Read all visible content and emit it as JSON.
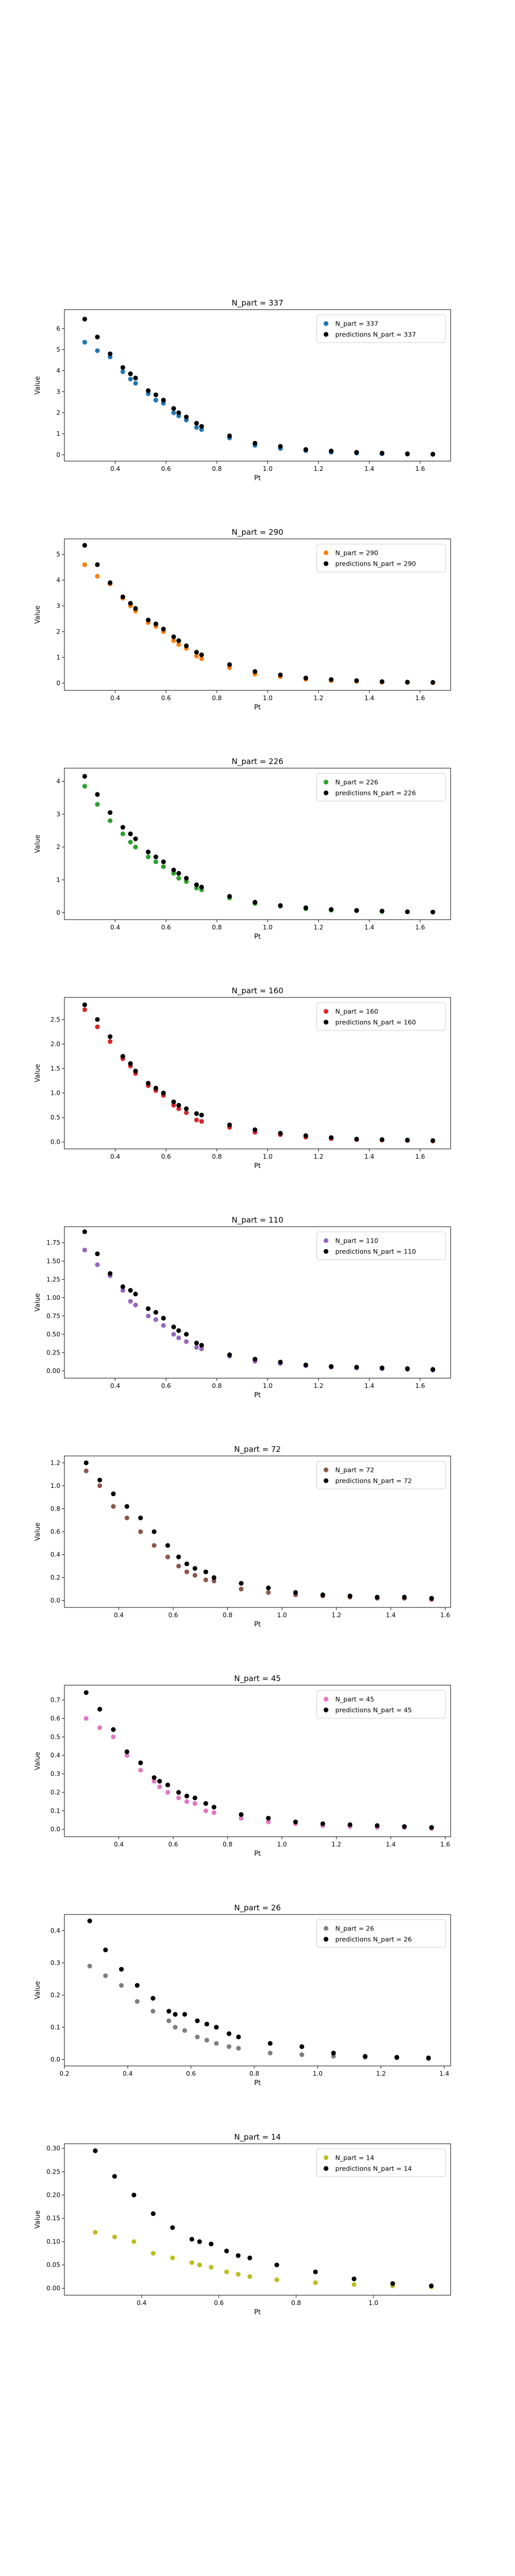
{
  "chart_data": [
    {
      "type": "scatter",
      "title": "N_part = 337",
      "xlabel": "Pt",
      "ylabel": "Value",
      "xlim": [
        0.2,
        1.72
      ],
      "ylim": [
        -0.3,
        6.9
      ],
      "xticks": [
        0.4,
        0.6,
        0.8,
        1.0,
        1.2,
        1.4,
        1.6
      ],
      "xtick_labels": [
        "0.4",
        "0.6",
        "0.8",
        "1.0",
        "1.2",
        "1.4",
        "1.6"
      ],
      "yticks": [
        0,
        1,
        2,
        3,
        4,
        5,
        6
      ],
      "ytick_labels": [
        "0",
        "1",
        "2",
        "3",
        "4",
        "5",
        "6"
      ],
      "grid": false,
      "legend_position": "upper right",
      "x": [
        0.28,
        0.33,
        0.38,
        0.43,
        0.46,
        0.48,
        0.53,
        0.56,
        0.59,
        0.63,
        0.65,
        0.68,
        0.72,
        0.74,
        0.85,
        0.95,
        1.05,
        1.15,
        1.25,
        1.35,
        1.45,
        1.55,
        1.65
      ],
      "series": [
        {
          "name": "N_part = 337",
          "color": "#1f77b4",
          "values": [
            5.35,
            4.95,
            4.65,
            3.95,
            3.6,
            3.4,
            2.9,
            2.6,
            2.45,
            2.0,
            1.85,
            1.65,
            1.3,
            1.2,
            0.8,
            0.45,
            0.3,
            0.2,
            0.12,
            0.08,
            0.05,
            0.03,
            0.02
          ]
        },
        {
          "name": "predictions N_part = 337",
          "color": "#000000",
          "values": [
            6.45,
            5.6,
            4.8,
            4.15,
            3.85,
            3.65,
            3.05,
            2.85,
            2.6,
            2.2,
            2.0,
            1.8,
            1.5,
            1.35,
            0.9,
            0.55,
            0.4,
            0.25,
            0.18,
            0.12,
            0.08,
            0.05,
            0.03
          ]
        }
      ]
    },
    {
      "type": "scatter",
      "title": "N_part = 290",
      "xlabel": "Pt",
      "ylabel": "Value",
      "xlim": [
        0.2,
        1.72
      ],
      "ylim": [
        -0.28,
        5.6
      ],
      "xticks": [
        0.4,
        0.6,
        0.8,
        1.0,
        1.2,
        1.4,
        1.6
      ],
      "xtick_labels": [
        "0.4",
        "0.6",
        "0.8",
        "1.0",
        "1.2",
        "1.4",
        "1.6"
      ],
      "yticks": [
        0,
        1,
        2,
        3,
        4,
        5
      ],
      "ytick_labels": [
        "0",
        "1",
        "2",
        "3",
        "4",
        "5"
      ],
      "grid": false,
      "legend_position": "upper right",
      "x": [
        0.28,
        0.33,
        0.38,
        0.43,
        0.46,
        0.48,
        0.53,
        0.56,
        0.59,
        0.63,
        0.65,
        0.68,
        0.72,
        0.74,
        0.85,
        0.95,
        1.05,
        1.15,
        1.25,
        1.35,
        1.45,
        1.55,
        1.65
      ],
      "series": [
        {
          "name": "N_part = 290",
          "color": "#ff7f0e",
          "values": [
            4.6,
            4.15,
            3.85,
            3.3,
            3.0,
            2.8,
            2.35,
            2.2,
            2.0,
            1.65,
            1.5,
            1.35,
            1.05,
            0.95,
            0.6,
            0.35,
            0.25,
            0.15,
            0.1,
            0.07,
            0.04,
            0.03,
            0.02
          ]
        },
        {
          "name": "predictions N_part = 290",
          "color": "#000000",
          "values": [
            5.35,
            4.6,
            3.9,
            3.35,
            3.1,
            2.9,
            2.45,
            2.3,
            2.1,
            1.8,
            1.65,
            1.45,
            1.2,
            1.1,
            0.72,
            0.45,
            0.32,
            0.2,
            0.14,
            0.1,
            0.06,
            0.04,
            0.03
          ]
        }
      ]
    },
    {
      "type": "scatter",
      "title": "N_part = 226",
      "xlabel": "Pt",
      "ylabel": "Value",
      "xlim": [
        0.2,
        1.72
      ],
      "ylim": [
        -0.21,
        4.4
      ],
      "xticks": [
        0.4,
        0.6,
        0.8,
        1.0,
        1.2,
        1.4,
        1.6
      ],
      "xtick_labels": [
        "0.4",
        "0.6",
        "0.8",
        "1.0",
        "1.2",
        "1.4",
        "1.6"
      ],
      "yticks": [
        0,
        1,
        2,
        3,
        4
      ],
      "ytick_labels": [
        "0",
        "1",
        "2",
        "3",
        "4"
      ],
      "grid": false,
      "legend_position": "upper right",
      "x": [
        0.28,
        0.33,
        0.38,
        0.43,
        0.46,
        0.48,
        0.53,
        0.56,
        0.59,
        0.63,
        0.65,
        0.68,
        0.72,
        0.74,
        0.85,
        0.95,
        1.05,
        1.15,
        1.25,
        1.35,
        1.45,
        1.55,
        1.65
      ],
      "series": [
        {
          "name": "N_part = 226",
          "color": "#2ca02c",
          "values": [
            3.85,
            3.3,
            2.8,
            2.4,
            2.15,
            2.0,
            1.7,
            1.55,
            1.4,
            1.2,
            1.05,
            0.95,
            0.75,
            0.7,
            0.45,
            0.28,
            0.2,
            0.12,
            0.08,
            0.06,
            0.04,
            0.03,
            0.02
          ]
        },
        {
          "name": "predictions N_part = 226",
          "color": "#000000",
          "values": [
            4.15,
            3.6,
            3.05,
            2.6,
            2.4,
            2.25,
            1.85,
            1.7,
            1.55,
            1.3,
            1.2,
            1.05,
            0.85,
            0.78,
            0.5,
            0.32,
            0.22,
            0.15,
            0.1,
            0.07,
            0.05,
            0.03,
            0.02
          ]
        }
      ]
    },
    {
      "type": "scatter",
      "title": "N_part = 160",
      "xlabel": "Pt",
      "ylabel": "Value",
      "xlim": [
        0.2,
        1.72
      ],
      "ylim": [
        -0.14,
        2.95
      ],
      "xticks": [
        0.4,
        0.6,
        0.8,
        1.0,
        1.2,
        1.4,
        1.6
      ],
      "xtick_labels": [
        "0.4",
        "0.6",
        "0.8",
        "1.0",
        "1.2",
        "1.4",
        "1.6"
      ],
      "yticks": [
        0,
        0.5,
        1.0,
        1.5,
        2.0,
        2.5
      ],
      "ytick_labels": [
        "0.0",
        "0.5",
        "1.0",
        "1.5",
        "2.0",
        "2.5"
      ],
      "grid": false,
      "legend_position": "upper right",
      "x": [
        0.28,
        0.33,
        0.38,
        0.43,
        0.46,
        0.48,
        0.53,
        0.56,
        0.59,
        0.63,
        0.65,
        0.68,
        0.72,
        0.74,
        0.85,
        0.95,
        1.05,
        1.15,
        1.25,
        1.35,
        1.45,
        1.55,
        1.65
      ],
      "series": [
        {
          "name": "N_part = 160",
          "color": "#d62728",
          "values": [
            2.7,
            2.35,
            2.05,
            1.7,
            1.55,
            1.4,
            1.15,
            1.05,
            0.95,
            0.75,
            0.68,
            0.6,
            0.45,
            0.42,
            0.3,
            0.2,
            0.15,
            0.1,
            0.07,
            0.05,
            0.04,
            0.03,
            0.02
          ]
        },
        {
          "name": "predictions N_part = 160",
          "color": "#000000",
          "values": [
            2.8,
            2.5,
            2.15,
            1.75,
            1.6,
            1.45,
            1.2,
            1.1,
            1.0,
            0.82,
            0.75,
            0.68,
            0.58,
            0.55,
            0.35,
            0.25,
            0.18,
            0.13,
            0.09,
            0.06,
            0.05,
            0.04,
            0.03
          ]
        }
      ]
    },
    {
      "type": "scatter",
      "title": "N_part = 110",
      "xlabel": "Pt",
      "ylabel": "Value",
      "xlim": [
        0.2,
        1.72
      ],
      "ylim": [
        -0.1,
        1.97
      ],
      "xticks": [
        0.4,
        0.6,
        0.8,
        1.0,
        1.2,
        1.4,
        1.6
      ],
      "xtick_labels": [
        "0.4",
        "0.6",
        "0.8",
        "1.0",
        "1.2",
        "1.4",
        "1.6"
      ],
      "yticks": [
        0,
        0.25,
        0.5,
        0.75,
        1.0,
        1.25,
        1.5,
        1.75
      ],
      "ytick_labels": [
        "0.00",
        "0.25",
        "0.50",
        "0.75",
        "1.00",
        "1.25",
        "1.50",
        "1.75"
      ],
      "grid": false,
      "legend_position": "upper right",
      "x": [
        0.28,
        0.33,
        0.38,
        0.43,
        0.46,
        0.48,
        0.53,
        0.56,
        0.59,
        0.63,
        0.65,
        0.68,
        0.72,
        0.74,
        0.85,
        0.95,
        1.05,
        1.15,
        1.25,
        1.35,
        1.45,
        1.55,
        1.65
      ],
      "series": [
        {
          "name": "N_part = 110",
          "color": "#9467bd",
          "values": [
            1.65,
            1.45,
            1.3,
            1.1,
            0.95,
            0.9,
            0.75,
            0.7,
            0.62,
            0.5,
            0.45,
            0.4,
            0.32,
            0.3,
            0.2,
            0.13,
            0.1,
            0.07,
            0.05,
            0.04,
            0.03,
            0.02,
            0.01
          ]
        },
        {
          "name": "predictions N_part = 110",
          "color": "#000000",
          "values": [
            1.9,
            1.6,
            1.33,
            1.15,
            1.1,
            1.05,
            0.85,
            0.8,
            0.72,
            0.6,
            0.55,
            0.5,
            0.38,
            0.35,
            0.22,
            0.16,
            0.12,
            0.08,
            0.06,
            0.05,
            0.04,
            0.03,
            0.02
          ]
        }
      ]
    },
    {
      "type": "scatter",
      "title": "N_part = 72",
      "xlabel": "Pt",
      "ylabel": "Value",
      "xlim": [
        0.2,
        1.62
      ],
      "ylim": [
        -0.06,
        1.26
      ],
      "xticks": [
        0.4,
        0.6,
        0.8,
        1.0,
        1.2,
        1.4,
        1.6
      ],
      "xtick_labels": [
        "0.4",
        "0.6",
        "0.8",
        "1.0",
        "1.2",
        "1.4",
        "1.6"
      ],
      "yticks": [
        0,
        0.2,
        0.4,
        0.6,
        0.8,
        1.0,
        1.2
      ],
      "ytick_labels": [
        "0.0",
        "0.2",
        "0.4",
        "0.6",
        "0.8",
        "1.0",
        "1.2"
      ],
      "grid": false,
      "legend_position": "upper right",
      "x": [
        0.28,
        0.33,
        0.38,
        0.43,
        0.48,
        0.53,
        0.58,
        0.62,
        0.65,
        0.68,
        0.72,
        0.75,
        0.85,
        0.95,
        1.05,
        1.15,
        1.25,
        1.35,
        1.45,
        1.55
      ],
      "series": [
        {
          "name": "N_part = 72",
          "color": "#8c564b",
          "values": [
            1.13,
            1.0,
            0.82,
            0.72,
            0.6,
            0.48,
            0.38,
            0.3,
            0.25,
            0.22,
            0.18,
            0.17,
            0.1,
            0.07,
            0.05,
            0.04,
            0.03,
            0.02,
            0.02,
            0.01
          ]
        },
        {
          "name": "predictions N_part = 72",
          "color": "#000000",
          "values": [
            1.2,
            1.05,
            0.93,
            0.82,
            0.72,
            0.6,
            0.48,
            0.38,
            0.32,
            0.28,
            0.25,
            0.2,
            0.15,
            0.11,
            0.07,
            0.05,
            0.04,
            0.03,
            0.03,
            0.02
          ]
        }
      ]
    },
    {
      "type": "scatter",
      "title": "N_part = 45",
      "xlabel": "Pt",
      "ylabel": "Value",
      "xlim": [
        0.2,
        1.62
      ],
      "ylim": [
        -0.04,
        0.78
      ],
      "xticks": [
        0.4,
        0.6,
        0.8,
        1.0,
        1.2,
        1.4,
        1.6
      ],
      "xtick_labels": [
        "0.4",
        "0.6",
        "0.8",
        "1.0",
        "1.2",
        "1.4",
        "1.6"
      ],
      "yticks": [
        0,
        0.1,
        0.2,
        0.3,
        0.4,
        0.5,
        0.6,
        0.7
      ],
      "ytick_labels": [
        "0.0",
        "0.1",
        "0.2",
        "0.3",
        "0.4",
        "0.5",
        "0.6",
        "0.7"
      ],
      "grid": false,
      "legend_position": "upper right",
      "x": [
        0.28,
        0.33,
        0.38,
        0.43,
        0.48,
        0.53,
        0.55,
        0.58,
        0.62,
        0.65,
        0.68,
        0.72,
        0.75,
        0.85,
        0.95,
        1.05,
        1.15,
        1.25,
        1.35,
        1.45,
        1.55
      ],
      "series": [
        {
          "name": "N_part = 45",
          "color": "#e377c2",
          "values": [
            0.6,
            0.55,
            0.5,
            0.4,
            0.32,
            0.26,
            0.23,
            0.2,
            0.17,
            0.15,
            0.14,
            0.1,
            0.09,
            0.06,
            0.04,
            0.03,
            0.02,
            0.015,
            0.01,
            0.01,
            0.005
          ]
        },
        {
          "name": "predictions N_part = 45",
          "color": "#000000",
          "values": [
            0.74,
            0.65,
            0.54,
            0.42,
            0.36,
            0.28,
            0.26,
            0.24,
            0.2,
            0.18,
            0.17,
            0.14,
            0.12,
            0.08,
            0.06,
            0.04,
            0.03,
            0.025,
            0.02,
            0.015,
            0.01
          ]
        }
      ]
    },
    {
      "type": "scatter",
      "title": "N_part = 26",
      "xlabel": "Pt",
      "ylabel": "Value",
      "xlim": [
        0.2,
        1.42
      ],
      "ylim": [
        -0.02,
        0.45
      ],
      "xticks": [
        0.2,
        0.4,
        0.6,
        0.8,
        1.0,
        1.2,
        1.4
      ],
      "xtick_labels": [
        "0.2",
        "0.4",
        "0.6",
        "0.8",
        "1.0",
        "1.2",
        "1.4"
      ],
      "yticks": [
        0,
        0.1,
        0.2,
        0.3,
        0.4
      ],
      "ytick_labels": [
        "0.0",
        "0.1",
        "0.2",
        "0.3",
        "0.4"
      ],
      "grid": false,
      "legend_position": "upper right",
      "x": [
        0.28,
        0.33,
        0.38,
        0.43,
        0.48,
        0.53,
        0.55,
        0.58,
        0.62,
        0.65,
        0.68,
        0.72,
        0.75,
        0.85,
        0.95,
        1.05,
        1.15,
        1.25,
        1.35
      ],
      "series": [
        {
          "name": "N_part = 26",
          "color": "#7f7f7f",
          "values": [
            0.29,
            0.26,
            0.23,
            0.18,
            0.15,
            0.12,
            0.1,
            0.09,
            0.07,
            0.06,
            0.05,
            0.04,
            0.035,
            0.02,
            0.015,
            0.01,
            0.007,
            0.005,
            0.003
          ]
        },
        {
          "name": "predictions N_part = 26",
          "color": "#000000",
          "values": [
            0.43,
            0.34,
            0.28,
            0.23,
            0.19,
            0.15,
            0.14,
            0.14,
            0.12,
            0.11,
            0.1,
            0.08,
            0.07,
            0.05,
            0.04,
            0.02,
            0.01,
            0.007,
            0.005
          ]
        }
      ]
    },
    {
      "type": "scatter",
      "title": "N_part = 14",
      "xlabel": "Pt",
      "ylabel": "Value",
      "xlim": [
        0.2,
        1.2
      ],
      "ylim": [
        -0.015,
        0.31
      ],
      "xticks": [
        0.4,
        0.6,
        0.8,
        1.0
      ],
      "xtick_labels": [
        "0.4",
        "0.6",
        "0.8",
        "1.0"
      ],
      "yticks": [
        0,
        0.05,
        0.1,
        0.15,
        0.2,
        0.25,
        0.3
      ],
      "ytick_labels": [
        "0.00",
        "0.05",
        "0.10",
        "0.15",
        "0.20",
        "0.25",
        "0.30"
      ],
      "grid": false,
      "legend_position": "upper right",
      "x": [
        0.28,
        0.33,
        0.38,
        0.43,
        0.48,
        0.53,
        0.55,
        0.58,
        0.62,
        0.65,
        0.68,
        0.75,
        0.85,
        0.95,
        1.05,
        1.15
      ],
      "series": [
        {
          "name": "N_part = 14",
          "color": "#bcbd22",
          "values": [
            0.12,
            0.11,
            0.1,
            0.075,
            0.065,
            0.055,
            0.05,
            0.045,
            0.035,
            0.03,
            0.025,
            0.018,
            0.012,
            0.008,
            0.005,
            0.003
          ]
        },
        {
          "name": "predictions N_part = 14",
          "color": "#000000",
          "values": [
            0.295,
            0.24,
            0.2,
            0.16,
            0.13,
            0.105,
            0.1,
            0.095,
            0.08,
            0.07,
            0.065,
            0.05,
            0.035,
            0.02,
            0.01,
            0.005
          ]
        }
      ]
    }
  ]
}
